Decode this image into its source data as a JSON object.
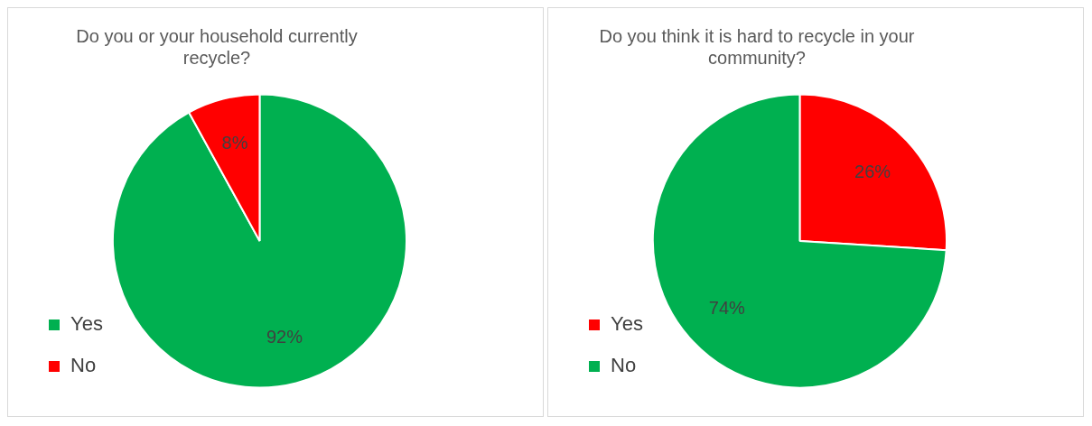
{
  "chart_data": [
    {
      "type": "pie",
      "title": "Do you or your household currently recycle?",
      "categories": [
        "Yes",
        "No"
      ],
      "values": [
        92,
        8
      ],
      "colors": [
        "#00b050",
        "#ff0000"
      ],
      "value_labels": [
        "92%",
        "8%"
      ],
      "legend": "left"
    },
    {
      "type": "pie",
      "title": "Do you think it is hard to recycle in your community?",
      "categories": [
        "Yes",
        "No"
      ],
      "values": [
        26,
        74
      ],
      "colors": [
        "#ff0000",
        "#00b050"
      ],
      "value_labels": [
        "26%",
        "74%"
      ],
      "legend": "left"
    }
  ]
}
